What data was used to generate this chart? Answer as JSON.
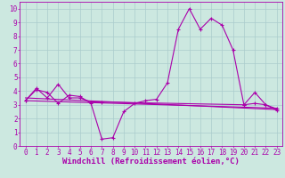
{
  "background_color": "#cce8e0",
  "grid_color": "#aacccc",
  "line_color": "#aa00aa",
  "xlabel": "Windchill (Refroidissement éolien,°C)",
  "xlabel_fontsize": 6.5,
  "xlim": [
    -0.5,
    23.5
  ],
  "ylim": [
    0,
    10.5
  ],
  "xticks": [
    0,
    1,
    2,
    3,
    4,
    5,
    6,
    7,
    8,
    9,
    10,
    11,
    12,
    13,
    14,
    15,
    16,
    17,
    18,
    19,
    20,
    21,
    22,
    23
  ],
  "yticks": [
    0,
    1,
    2,
    3,
    4,
    5,
    6,
    7,
    8,
    9,
    10
  ],
  "tick_fontsize": 5.5,
  "series1_x": [
    0,
    1,
    2,
    3,
    4,
    5,
    6,
    7,
    8,
    9,
    10,
    11,
    12,
    13,
    14,
    15,
    16,
    17,
    18,
    19,
    20,
    21,
    22,
    23
  ],
  "series1_y": [
    3.3,
    4.1,
    3.9,
    3.1,
    3.7,
    3.6,
    3.1,
    0.5,
    0.6,
    2.5,
    3.1,
    3.3,
    3.4,
    4.6,
    8.5,
    10.0,
    8.5,
    9.3,
    8.8,
    7.0,
    3.0,
    3.1,
    3.0,
    2.7
  ],
  "series2_x": [
    0,
    1,
    2,
    3,
    4,
    5,
    6,
    7,
    20,
    21,
    22,
    23
  ],
  "series2_y": [
    3.3,
    4.2,
    3.5,
    4.5,
    3.5,
    3.5,
    3.2,
    3.2,
    3.0,
    3.9,
    3.0,
    2.6
  ],
  "series3_x": [
    0,
    23
  ],
  "series3_y": [
    3.5,
    2.65
  ],
  "series4_x": [
    0,
    23
  ],
  "series4_y": [
    3.3,
    2.75
  ]
}
